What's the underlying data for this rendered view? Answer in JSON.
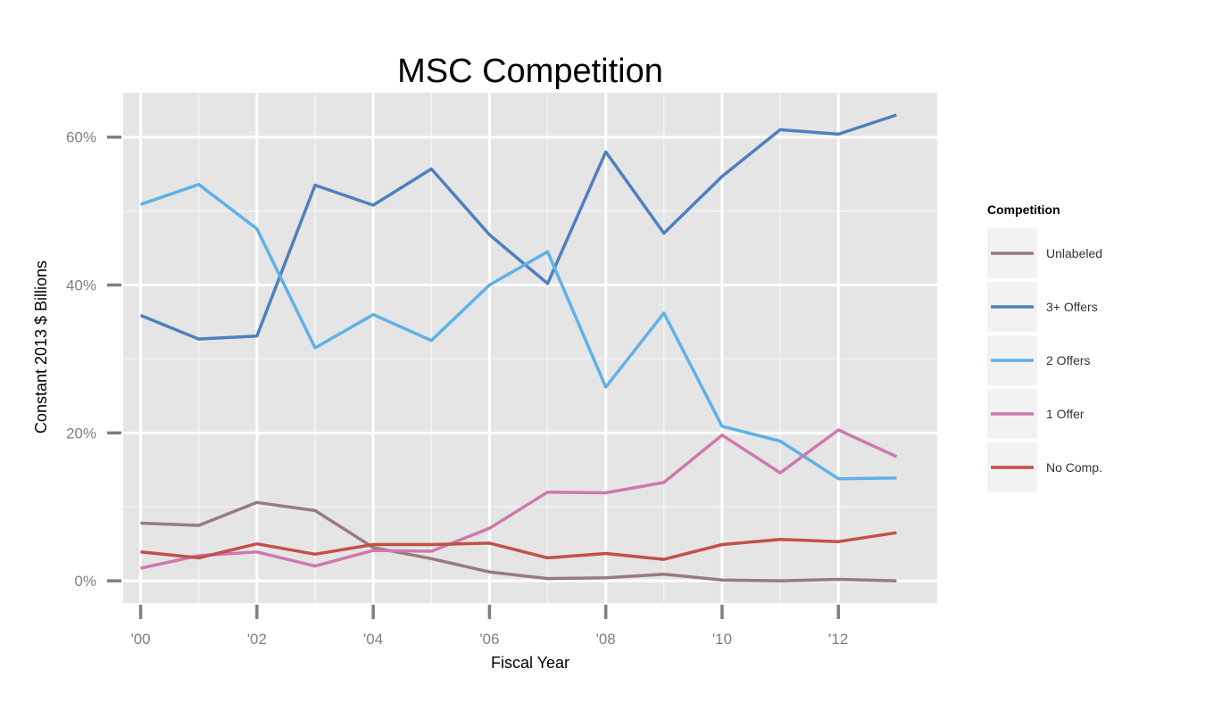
{
  "chart_data": {
    "type": "line",
    "title": "MSC Competition",
    "xlabel": "Fiscal Year",
    "ylabel": "Constant 2013 $ Billions",
    "x": [
      2000,
      2001,
      2002,
      2003,
      2004,
      2005,
      2006,
      2007,
      2008,
      2009,
      2010,
      2011,
      2012,
      2013
    ],
    "xlim": [
      1999.7,
      2013.7
    ],
    "ylim": [
      -3,
      66
    ],
    "x_ticks": [
      2000,
      2002,
      2004,
      2006,
      2008,
      2010,
      2012
    ],
    "x_tick_labels": [
      "'00",
      "'02",
      "'04",
      "'06",
      "'08",
      "'10",
      "'12"
    ],
    "y_ticks": [
      0,
      20,
      40,
      60
    ],
    "y_tick_labels": [
      "0%",
      "20%",
      "40%",
      "60%"
    ],
    "grid": true,
    "legend": {
      "title": "Competition",
      "placement": "right"
    },
    "series": [
      {
        "name": "Unlabeled",
        "color": "#997b7b",
        "values": [
          7.8,
          7.5,
          10.6,
          9.5,
          4.5,
          3.0,
          1.2,
          0.3,
          0.4,
          0.9,
          0.1,
          0.0,
          0.2,
          0.0
        ]
      },
      {
        "name": "3+ Offers",
        "color": "#4e80bf",
        "values": [
          35.9,
          32.7,
          33.1,
          53.5,
          50.8,
          55.7,
          46.8,
          40.2,
          58.0,
          47.0,
          54.7,
          61.0,
          60.4,
          63.0
        ]
      },
      {
        "name": "2 Offers",
        "color": "#5fb1e8",
        "values": [
          50.9,
          53.6,
          47.6,
          31.5,
          36.0,
          32.5,
          40.0,
          44.5,
          26.2,
          36.2,
          20.9,
          18.9,
          13.8,
          13.9
        ]
      },
      {
        "name": "1 Offer",
        "color": "#cd79ac",
        "values": [
          1.7,
          3.4,
          3.9,
          2.0,
          4.1,
          4.0,
          7.1,
          12.0,
          11.9,
          13.3,
          19.7,
          14.6,
          20.4,
          16.8
        ]
      },
      {
        "name": "No Comp.",
        "color": "#c2504a",
        "values": [
          3.9,
          3.1,
          5.0,
          3.6,
          4.9,
          4.9,
          5.1,
          3.1,
          3.7,
          2.9,
          4.9,
          5.6,
          5.3,
          6.5
        ]
      }
    ]
  }
}
